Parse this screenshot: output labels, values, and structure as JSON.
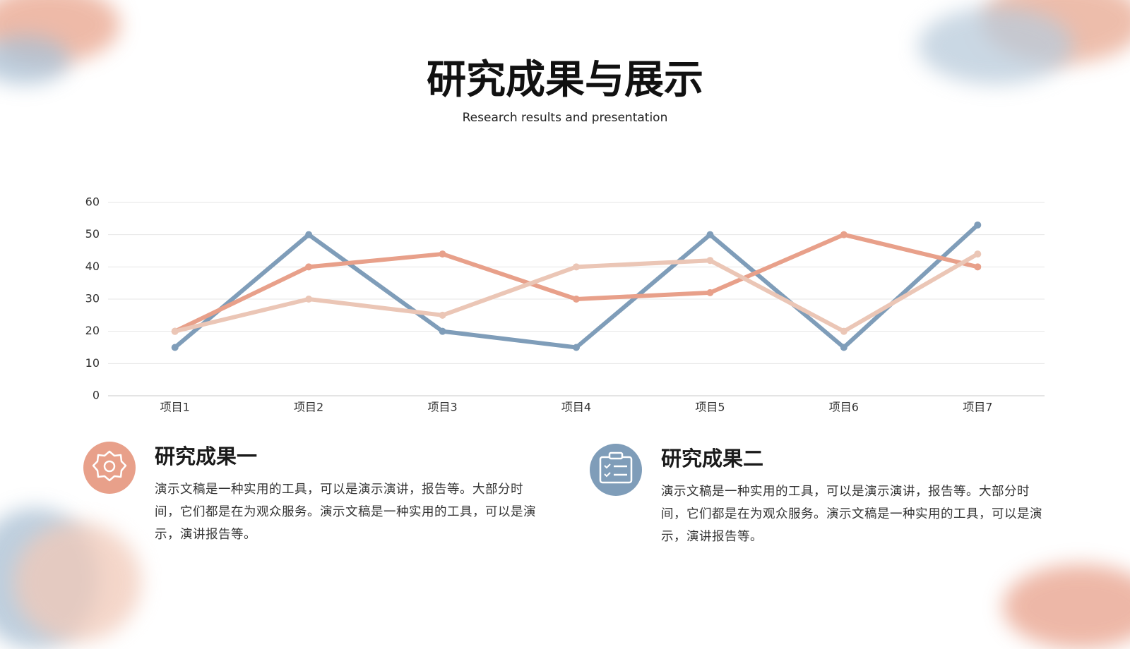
{
  "chart_data": {
    "type": "line",
    "title": "研究成果与展示",
    "subtitle": "Research results and presentation",
    "categories": [
      "项目1",
      "项目2",
      "项目3",
      "项目4",
      "项目5",
      "项目6",
      "项目7"
    ],
    "series": [
      {
        "color": "#7f9db9",
        "values": [
          15,
          50,
          20,
          15,
          50,
          15,
          53
        ]
      },
      {
        "color": "#e8a08a",
        "values": [
          20,
          40,
          44,
          30,
          32,
          50,
          40
        ]
      },
      {
        "color": "#ebc6b6",
        "values": [
          20,
          30,
          25,
          40,
          42,
          20,
          44
        ]
      }
    ],
    "ylim": [
      0,
      60
    ],
    "yticks": [
      0,
      10,
      20,
      30,
      40,
      50,
      60
    ],
    "grid": true
  },
  "items": [
    {
      "title": "研究成果一",
      "text": "演示文稿是一种实用的工具，可以是演示演讲，报告等。大部分时间，它们都是在为观众服务。演示文稿是一种实用的工具，可以是演示，演讲报告等。"
    },
    {
      "title": "研究成果二",
      "text": "演示文稿是一种实用的工具，可以是演示演讲，报告等。大部分时间，它们都是在为观众服务。演示文稿是一种实用的工具，可以是演示，演讲报告等。"
    }
  ]
}
